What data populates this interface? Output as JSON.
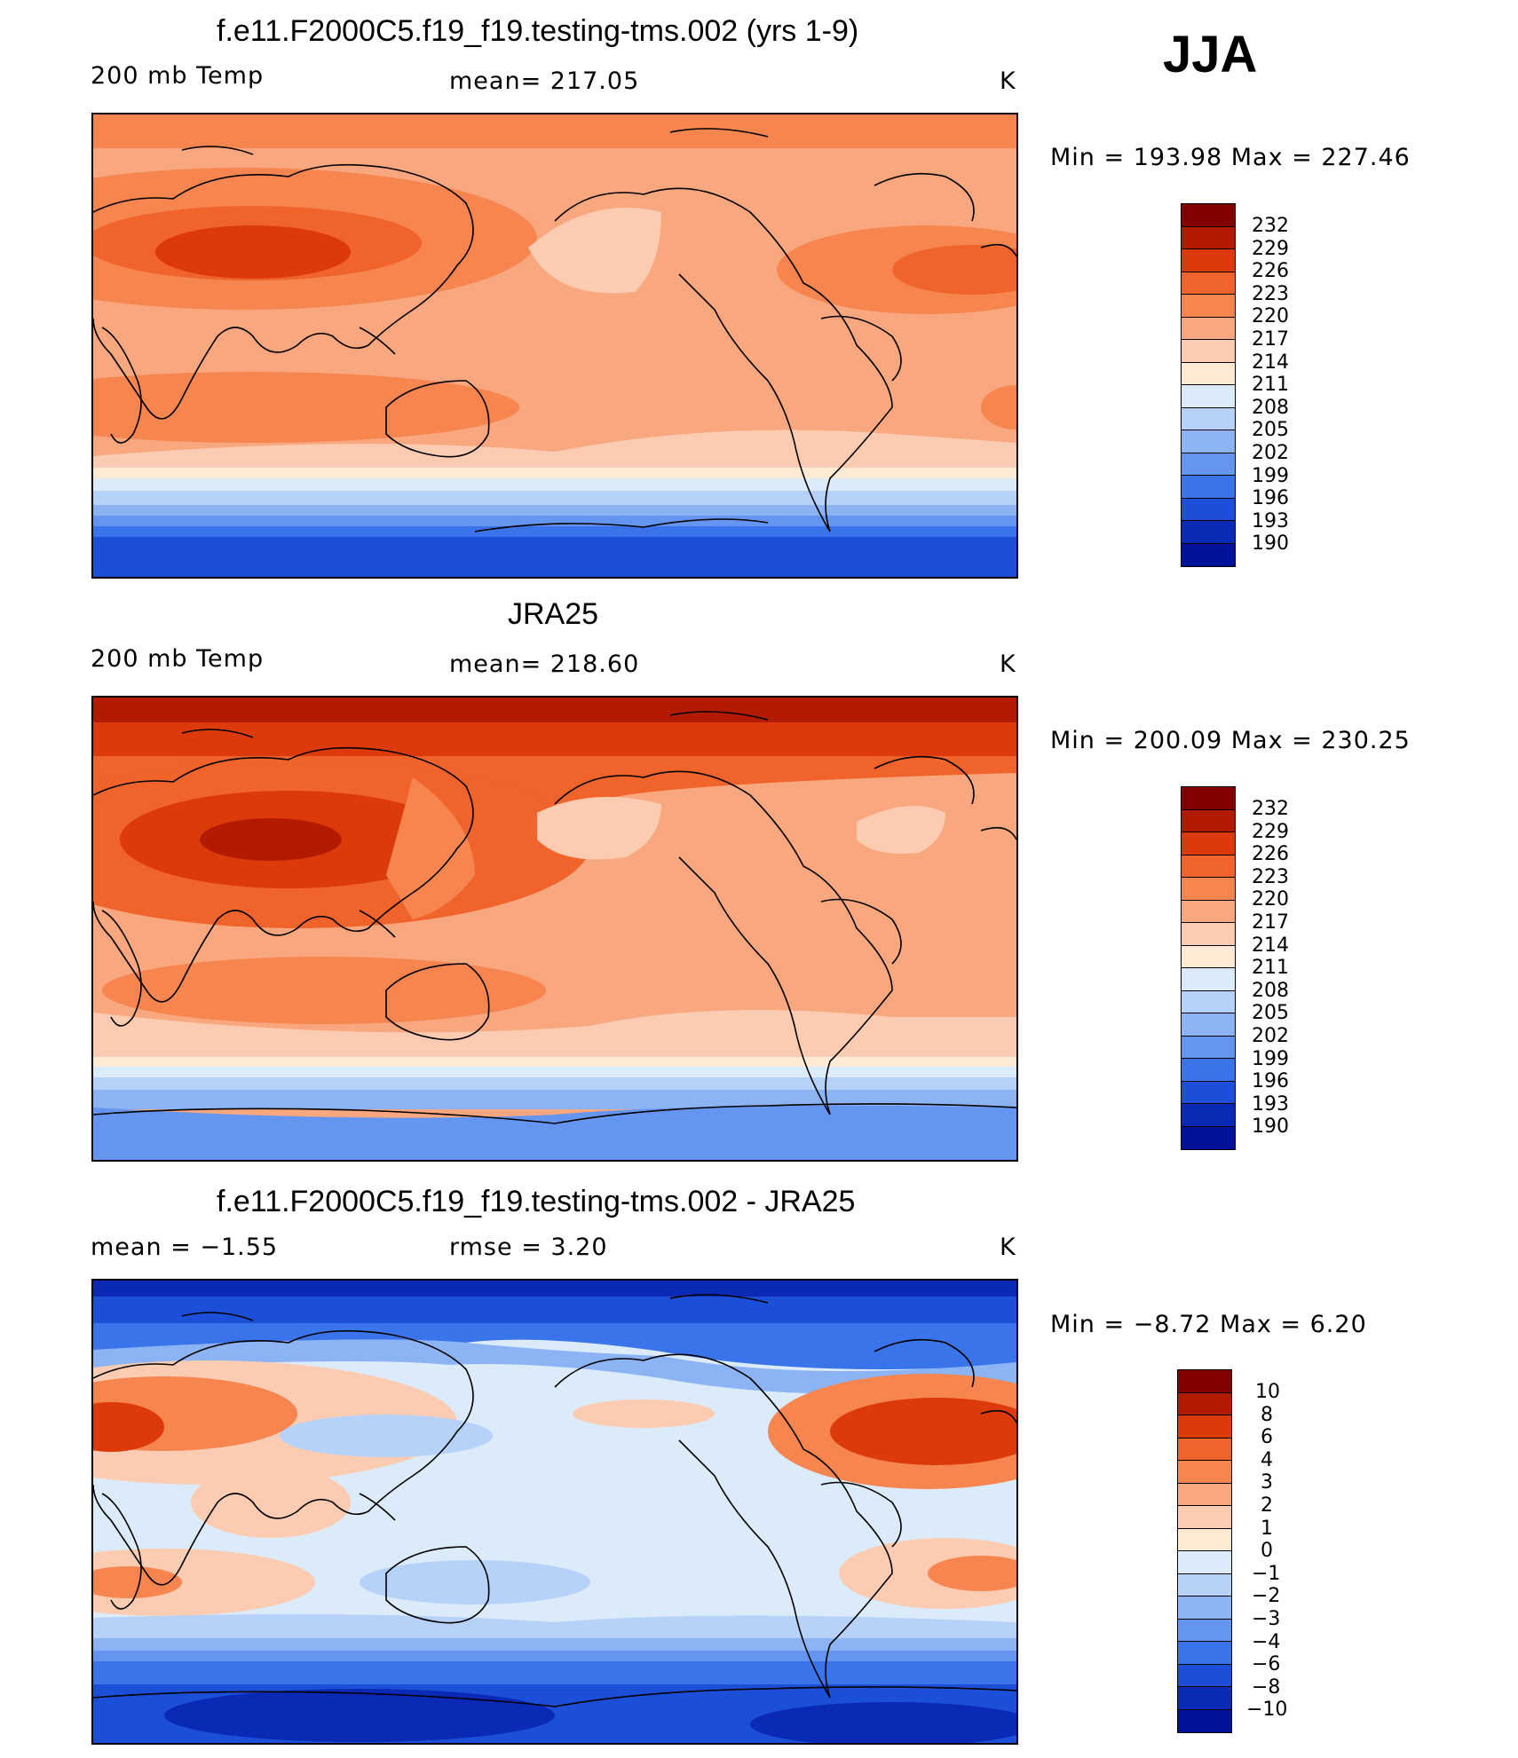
{
  "season": "JJA",
  "panels": [
    {
      "title": "f.e11.F2000C5.f19_f19.testing-tms.002 (yrs 1-9)",
      "left_label": "200 mb Temp",
      "center_label": "mean=  217.05",
      "units": "K",
      "minmax": "Min  =  193.98  Max  =  227.46",
      "levels": [
        "232",
        "229",
        "226",
        "223",
        "220",
        "217",
        "214",
        "211",
        "208",
        "205",
        "202",
        "199",
        "196",
        "193",
        "190"
      ],
      "colors": [
        "#830000",
        "#B31B00",
        "#DC3A0A",
        "#F0632A",
        "#F68550",
        "#F9A77E",
        "#FCCCB2",
        "#FFEAD6",
        "#DCEBFA",
        "#B7D2F8",
        "#8CB4F5",
        "#6495F0",
        "#3A74EA",
        "#1B4FD8",
        "#0A2AB5",
        "#00129A"
      ]
    },
    {
      "title": "JRA25",
      "left_label": "200 mb Temp",
      "center_label": "mean=  218.60",
      "units": "K",
      "minmax": "Min  =  200.09  Max  =  230.25",
      "levels": [
        "232",
        "229",
        "226",
        "223",
        "220",
        "217",
        "214",
        "211",
        "208",
        "205",
        "202",
        "199",
        "196",
        "193",
        "190"
      ],
      "colors": [
        "#830000",
        "#B31B00",
        "#DC3A0A",
        "#F0632A",
        "#F68550",
        "#F9A77E",
        "#FCCCB2",
        "#FFEAD6",
        "#DCEBFA",
        "#B7D2F8",
        "#8CB4F5",
        "#6495F0",
        "#3A74EA",
        "#1B4FD8",
        "#0A2AB5",
        "#00129A"
      ]
    },
    {
      "title": "f.e11.F2000C5.f19_f19.testing-tms.002 - JRA25",
      "left_label": "mean  =   −1.55",
      "center_label": "rmse  =     3.20",
      "units": "K",
      "minmax": "Min  =    −8.72  Max  =      6.20",
      "levels": [
        "10",
        "8",
        "6",
        "4",
        "3",
        "2",
        "1",
        "0",
        "−1",
        "−2",
        "−3",
        "−4",
        "−6",
        "−8",
        "−10"
      ],
      "colors": [
        "#830000",
        "#B31B00",
        "#DC3A0A",
        "#F0632A",
        "#F68550",
        "#F9A77E",
        "#FCCCB2",
        "#FFEAD6",
        "#DCEBFA",
        "#B7D2F8",
        "#8CB4F5",
        "#6495F0",
        "#3A74EA",
        "#1B4FD8",
        "#0A2AB5",
        "#00129A"
      ]
    }
  ]
}
